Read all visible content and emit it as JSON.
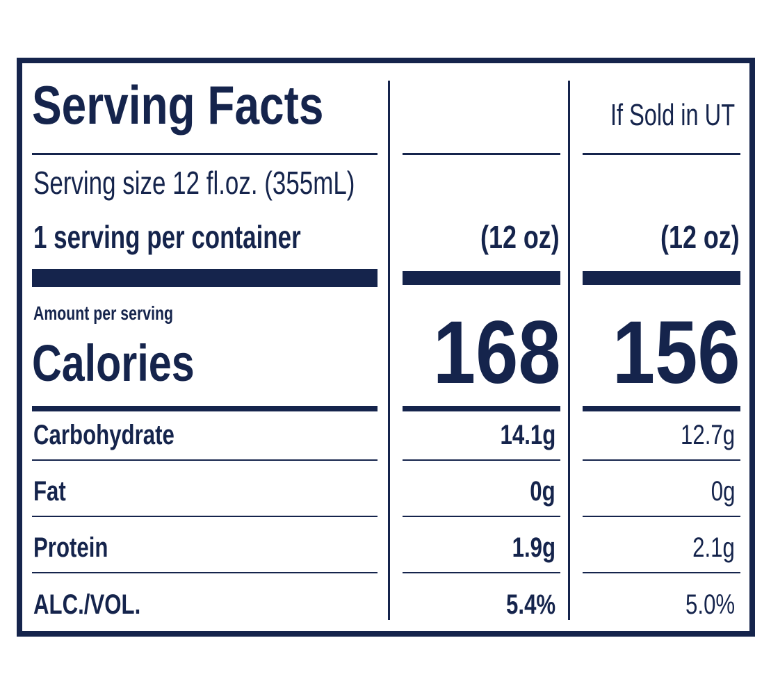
{
  "panel": {
    "title": "Serving Facts",
    "serving_size": "Serving size 12 fl.oz. (355mL)",
    "servings_per_container": "1 serving per container",
    "column_header_ut": "If Sold in UT",
    "col1_size": "(12 oz)",
    "col2_size": "(12 oz)",
    "amount_per_serving": "Amount per serving",
    "calories_label": "Calories",
    "calories_col1": "168",
    "calories_col2": "156",
    "rows": [
      {
        "label": "Carbohydrate",
        "col1": "14.1g",
        "col2": "12.7g"
      },
      {
        "label": "Fat",
        "col1": "0g",
        "col2": "0g"
      },
      {
        "label": "Protein",
        "col1": "1.9g",
        "col2": "2.1g"
      },
      {
        "label": "ALC./VOL.",
        "col1": "5.4%",
        "col2": "5.0%"
      }
    ]
  },
  "colors": {
    "ink": "#15244c",
    "background": "#ffffff"
  }
}
